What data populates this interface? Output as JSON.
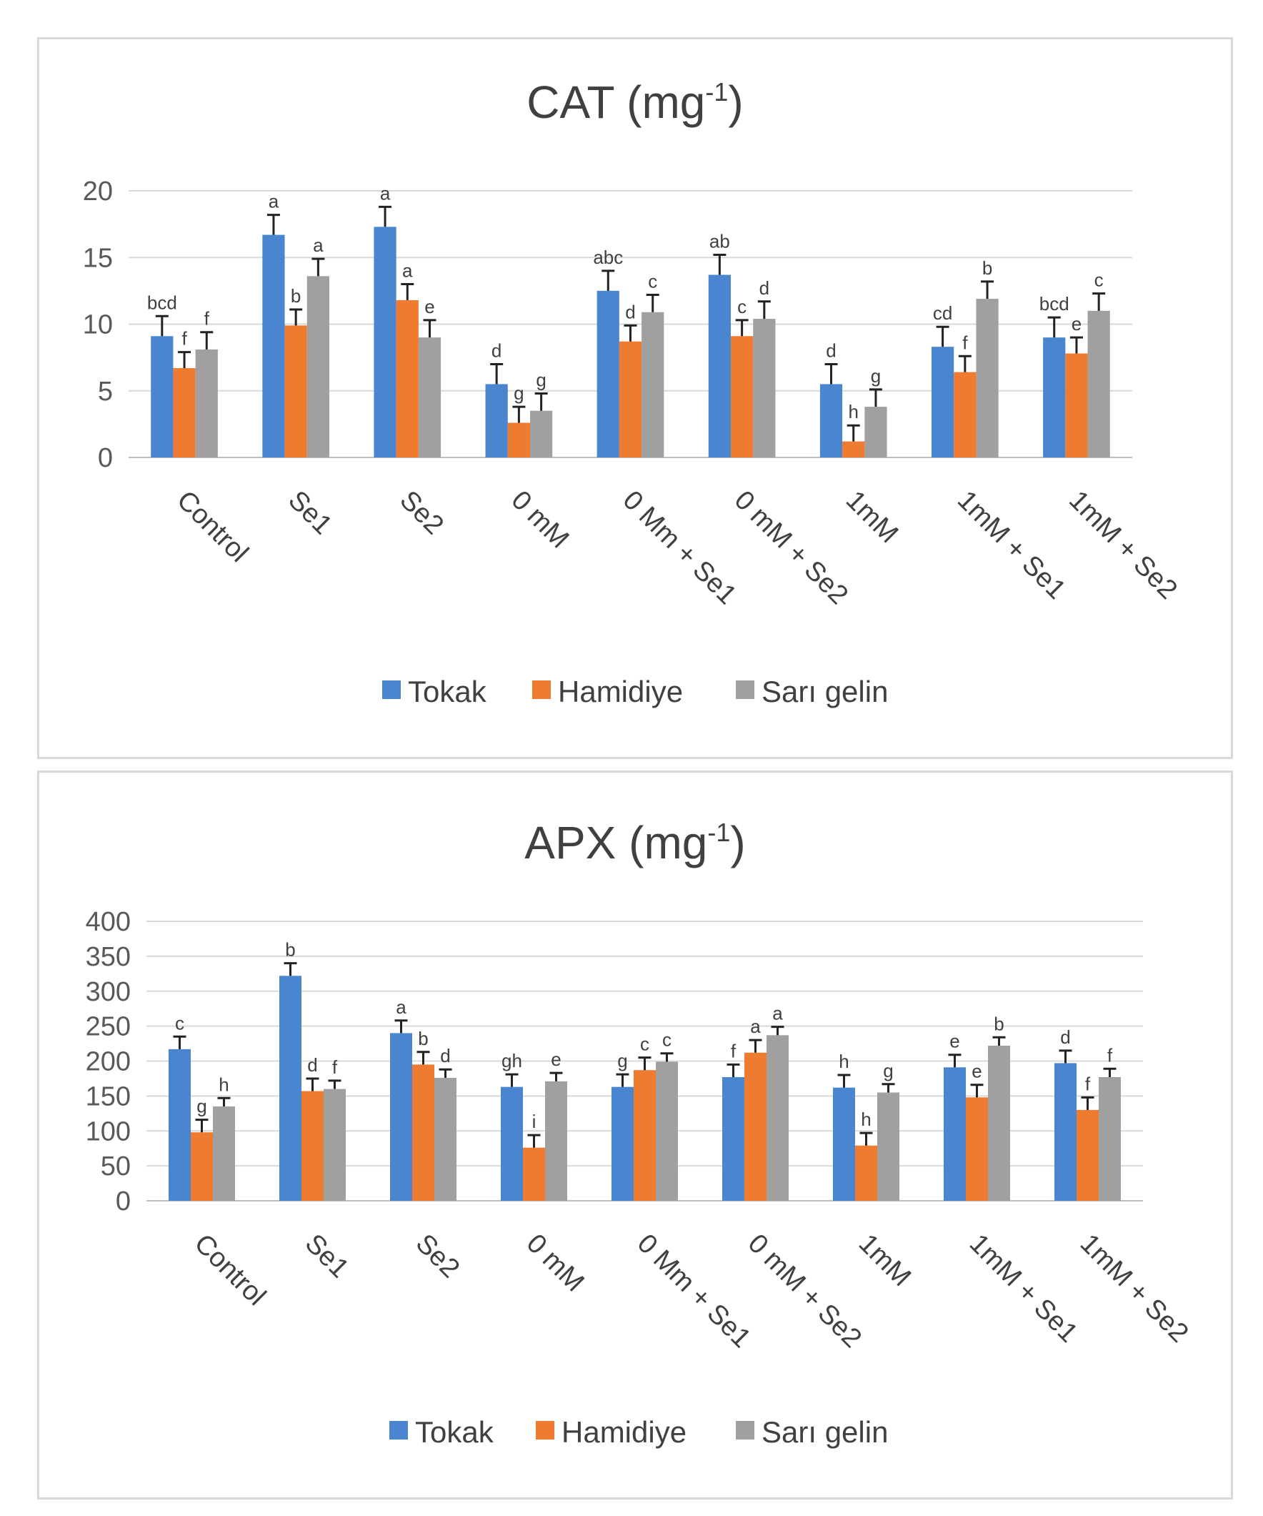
{
  "colors": {
    "Tokak": "#4a86d0",
    "Hamidiye": "#ee7b30",
    "Sarı gelin": "#a0a0a0",
    "grid": "#d9d9d9",
    "axis": "#bfbfbf",
    "errorbar": "#222222"
  },
  "chart_data": [
    {
      "type": "bar",
      "title": "CAT (mg",
      "title_sup": "-1",
      "title_close": ")",
      "categories": [
        "Control",
        "Se1",
        "Se2",
        "0 mM",
        "0 Mm + Se1",
        "0 mM + Se2",
        "1mM",
        "1mM + Se1",
        "1mM + Se2"
      ],
      "ylim": [
        0,
        20
      ],
      "yticks": [
        0,
        5,
        10,
        15,
        20
      ],
      "legend_position": "bottom",
      "series": [
        {
          "name": "Tokak",
          "values": [
            9.1,
            16.7,
            17.3,
            5.5,
            12.5,
            13.7,
            5.5,
            8.3,
            9.0
          ],
          "errors": [
            1.5,
            1.5,
            1.5,
            1.5,
            1.5,
            1.5,
            1.5,
            1.5,
            1.5
          ],
          "letters": [
            "bcd",
            "a",
            "a",
            "d",
            "abc",
            "ab",
            "d",
            "cd",
            "bcd"
          ]
        },
        {
          "name": "Hamidiye",
          "values": [
            6.7,
            9.9,
            11.8,
            2.6,
            8.7,
            9.1,
            1.2,
            6.4,
            7.8
          ],
          "errors": [
            1.2,
            1.2,
            1.2,
            1.2,
            1.2,
            1.2,
            1.2,
            1.2,
            1.2
          ],
          "letters": [
            "f",
            "b",
            "a",
            "g",
            "d",
            "c",
            "h",
            "f",
            "e"
          ]
        },
        {
          "name": "Sarı gelin",
          "values": [
            8.1,
            13.6,
            9.0,
            3.5,
            10.9,
            10.4,
            3.8,
            11.9,
            11.0
          ],
          "errors": [
            1.3,
            1.3,
            1.3,
            1.3,
            1.3,
            1.3,
            1.3,
            1.3,
            1.3
          ],
          "letters": [
            "f",
            "a",
            "e",
            "g",
            "c",
            "d",
            "g",
            "b",
            "c"
          ]
        }
      ]
    },
    {
      "type": "bar",
      "title": "APX (mg",
      "title_sup": "-1",
      "title_close": ")",
      "categories": [
        "Control",
        "Se1",
        "Se2",
        "0 mM",
        "0 Mm + Se1",
        "0 mM + Se2",
        "1mM",
        "1mM + Se1",
        "1mM + Se2"
      ],
      "ylim": [
        0,
        400
      ],
      "yticks": [
        0,
        50,
        100,
        150,
        200,
        250,
        300,
        350,
        400
      ],
      "legend_position": "bottom",
      "series": [
        {
          "name": "Tokak",
          "values": [
            217,
            322,
            240,
            163,
            163,
            177,
            162,
            191,
            197
          ],
          "errors": [
            18,
            18,
            18,
            18,
            18,
            18,
            18,
            18,
            18
          ],
          "letters": [
            "c",
            "b",
            "a",
            "gh",
            "g",
            "f",
            "h",
            "e",
            "d"
          ]
        },
        {
          "name": "Hamidiye",
          "values": [
            98,
            157,
            195,
            76,
            187,
            212,
            79,
            148,
            130
          ],
          "errors": [
            18,
            18,
            18,
            18,
            18,
            18,
            18,
            18,
            18
          ],
          "letters": [
            "g",
            "d",
            "b",
            "i",
            "c",
            "a",
            "h",
            "e",
            "f"
          ]
        },
        {
          "name": "Sarı gelin",
          "values": [
            135,
            160,
            176,
            171,
            199,
            237,
            155,
            222,
            177
          ],
          "errors": [
            12,
            12,
            12,
            12,
            12,
            12,
            12,
            12,
            12
          ],
          "letters": [
            "h",
            "f",
            "d",
            "e",
            "c",
            "a",
            "g",
            "b",
            "f"
          ]
        }
      ]
    }
  ]
}
